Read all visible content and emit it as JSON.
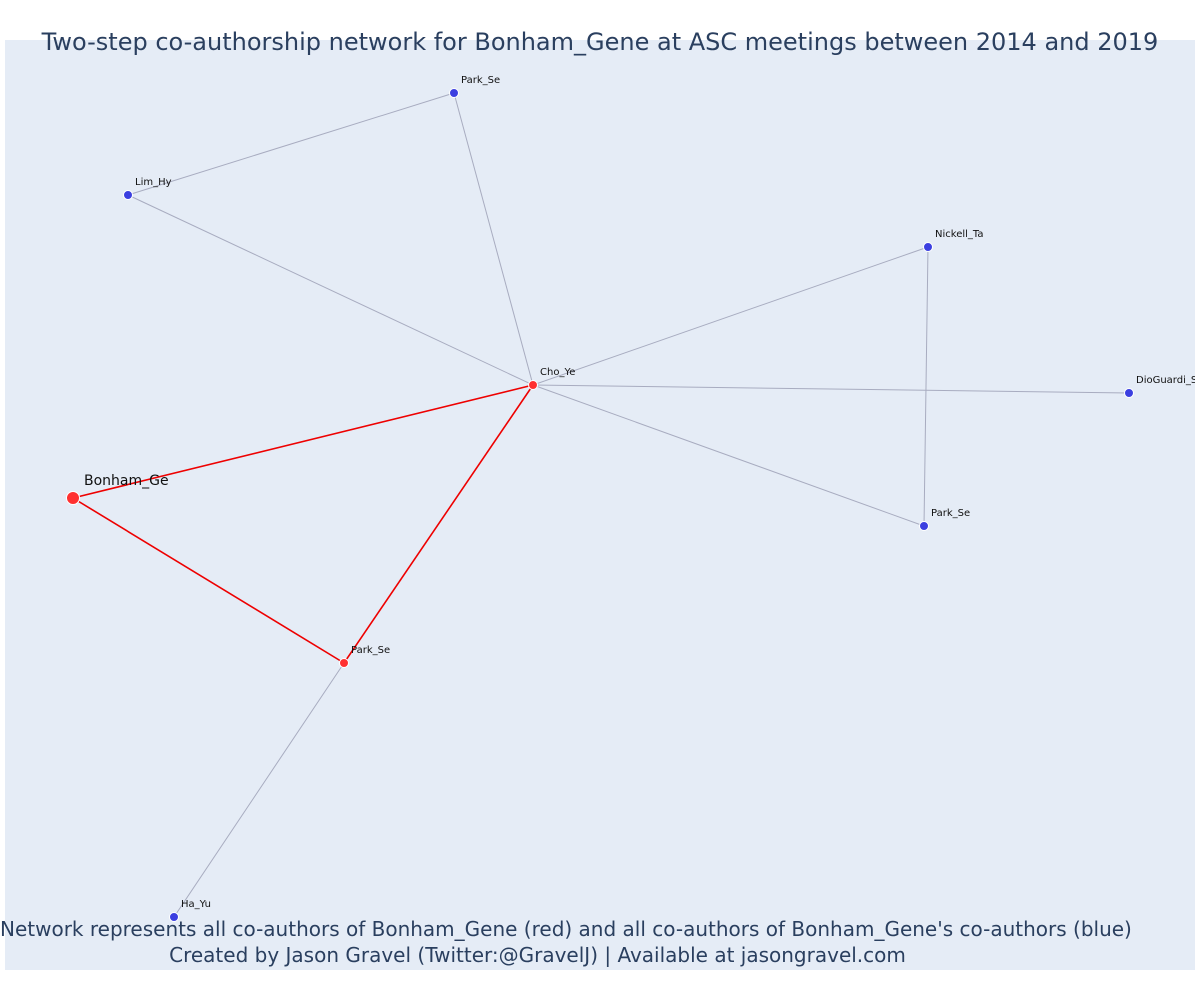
{
  "title": "Two-step co-authorship network for Bonham_Gene at ASC meetings between 2014 and 2019",
  "caption": {
    "line1": "Network represents all co-authors of Bonham_Gene (red) and all co-authors of Bonham_Gene's co-authors (blue)",
    "line2": "Created by Jason Gravel (Twitter:@GravelJ) | Available at jasongravel.com"
  },
  "colors": {
    "focal": "#ff3030",
    "first_step": "#ff3030",
    "second_step": "#3b3fe0",
    "red_edge": "#ee0000",
    "grey_edge": "#a8acc0",
    "background": "#e5ecf6"
  },
  "nodes": [
    {
      "id": "bonham",
      "label": "Bonham_Ge",
      "group": "focal"
    },
    {
      "id": "cho",
      "label": "Cho_Ye",
      "group": "first_step"
    },
    {
      "id": "park_red",
      "label": "Park_Se",
      "group": "first_step"
    },
    {
      "id": "park_top",
      "label": "Park_Se",
      "group": "second_step"
    },
    {
      "id": "lim",
      "label": "Lim_Hy",
      "group": "second_step"
    },
    {
      "id": "nickell",
      "label": "Nickell_Ta",
      "group": "second_step"
    },
    {
      "id": "dioguardi",
      "label": "DioGuardi_St",
      "group": "second_step"
    },
    {
      "id": "park_right",
      "label": "Park_Se",
      "group": "second_step"
    },
    {
      "id": "ha",
      "label": "Ha_Yu",
      "group": "second_step"
    }
  ],
  "edges": [
    {
      "source": "bonham",
      "target": "cho",
      "type": "red"
    },
    {
      "source": "bonham",
      "target": "park_red",
      "type": "red"
    },
    {
      "source": "cho",
      "target": "park_red",
      "type": "red"
    },
    {
      "source": "cho",
      "target": "park_top",
      "type": "grey"
    },
    {
      "source": "cho",
      "target": "lim",
      "type": "grey"
    },
    {
      "source": "lim",
      "target": "park_top",
      "type": "grey"
    },
    {
      "source": "cho",
      "target": "nickell",
      "type": "grey"
    },
    {
      "source": "cho",
      "target": "dioguardi",
      "type": "grey"
    },
    {
      "source": "cho",
      "target": "park_right",
      "type": "grey"
    },
    {
      "source": "nickell",
      "target": "park_right",
      "type": "grey"
    },
    {
      "source": "park_red",
      "target": "ha",
      "type": "grey"
    }
  ]
}
